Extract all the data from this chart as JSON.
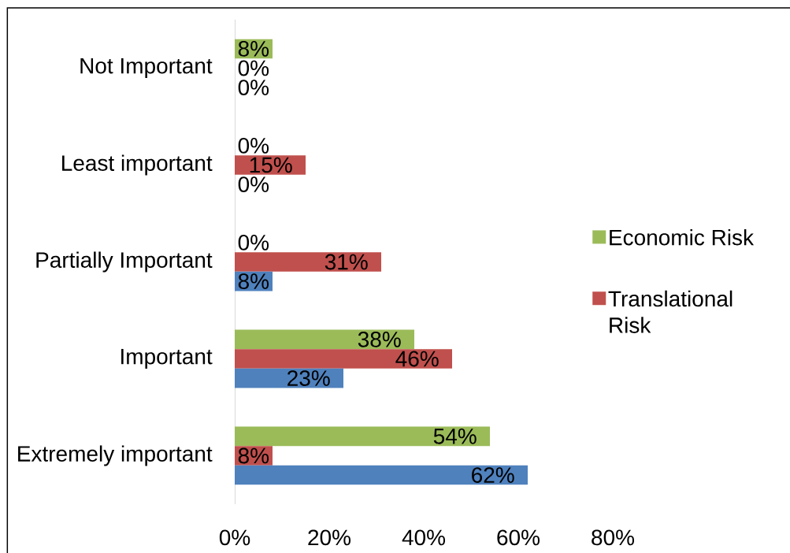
{
  "chart_data": {
    "type": "bar",
    "orientation": "horizontal",
    "categories": [
      "Not Important",
      "Least important",
      "Partially Important",
      "Important",
      "Extremely important"
    ],
    "series": [
      {
        "name": "Economic Risk",
        "color": "#9bbb59",
        "values": [
          8,
          0,
          0,
          38,
          54
        ],
        "value_labels": [
          "8%",
          "0%",
          "0%",
          "38%",
          "54%"
        ]
      },
      {
        "name": "Translational Risk",
        "color": "#c0504d",
        "values": [
          0,
          15,
          31,
          46,
          8
        ],
        "value_labels": [
          "0%",
          "15%",
          "31%",
          "46%",
          "8%"
        ]
      },
      {
        "color": "#4f81bd",
        "values": [
          0,
          0,
          8,
          23,
          62
        ],
        "value_labels": [
          "0%",
          "0%",
          "8%",
          "23%",
          "62%"
        ]
      }
    ],
    "xlim": [
      0,
      80
    ],
    "xticks": [
      {
        "value": 0,
        "label": "0%"
      },
      {
        "value": 20,
        "label": "20%"
      },
      {
        "value": 40,
        "label": "40%"
      },
      {
        "value": 60,
        "label": "60%"
      },
      {
        "value": 80,
        "label": "80%"
      }
    ],
    "legend": "right"
  }
}
